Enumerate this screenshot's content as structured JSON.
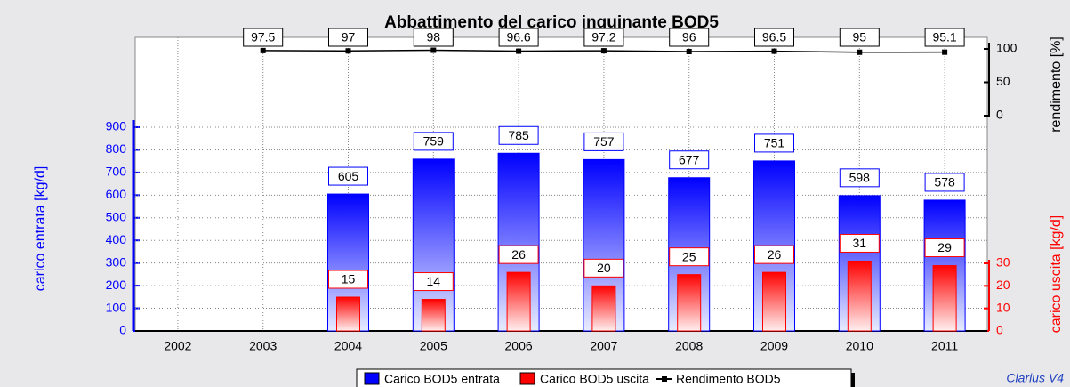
{
  "chart_data": {
    "type": "bar",
    "title": "Abbattimento del carico inquinante BOD5",
    "y_label": "carico entrata [kg/d]",
    "y2_label": "carico uscita [kg/d]",
    "y3_label": "rendimento [%]",
    "footer": "Clarius V4",
    "categories": [
      "2002",
      "2003",
      "2004",
      "2005",
      "2006",
      "2007",
      "2008",
      "2009",
      "2010",
      "2011"
    ],
    "series": [
      {
        "name": "Carico BOD5 entrata",
        "color": "#0000ff",
        "type": "bar",
        "axis": "y",
        "values": [
          null,
          null,
          605,
          759,
          785,
          757,
          677,
          751,
          598,
          578
        ]
      },
      {
        "name": "Carico BOD5 uscita",
        "color": "#ff0000",
        "type": "bar",
        "axis": "y2",
        "values": [
          null,
          null,
          15,
          14,
          26,
          20,
          25,
          26,
          31,
          29
        ]
      },
      {
        "name": "Rendimento BOD5",
        "color": "#000000",
        "type": "line",
        "axis": "y3",
        "values": [
          null,
          97.5,
          97,
          98,
          96.6,
          97.2,
          96,
          96.5,
          95,
          95.1
        ]
      }
    ],
    "ylim": [
      0,
      900
    ],
    "yticks": [
      0,
      100,
      200,
      300,
      400,
      500,
      600,
      700,
      800,
      900
    ],
    "y2lim": [
      0,
      30
    ],
    "y2ticks": [
      0,
      10,
      20,
      30
    ],
    "y3lim": [
      0,
      100
    ],
    "y3ticks": [
      0,
      50,
      100
    ],
    "grid": true,
    "legend": "bottom"
  }
}
